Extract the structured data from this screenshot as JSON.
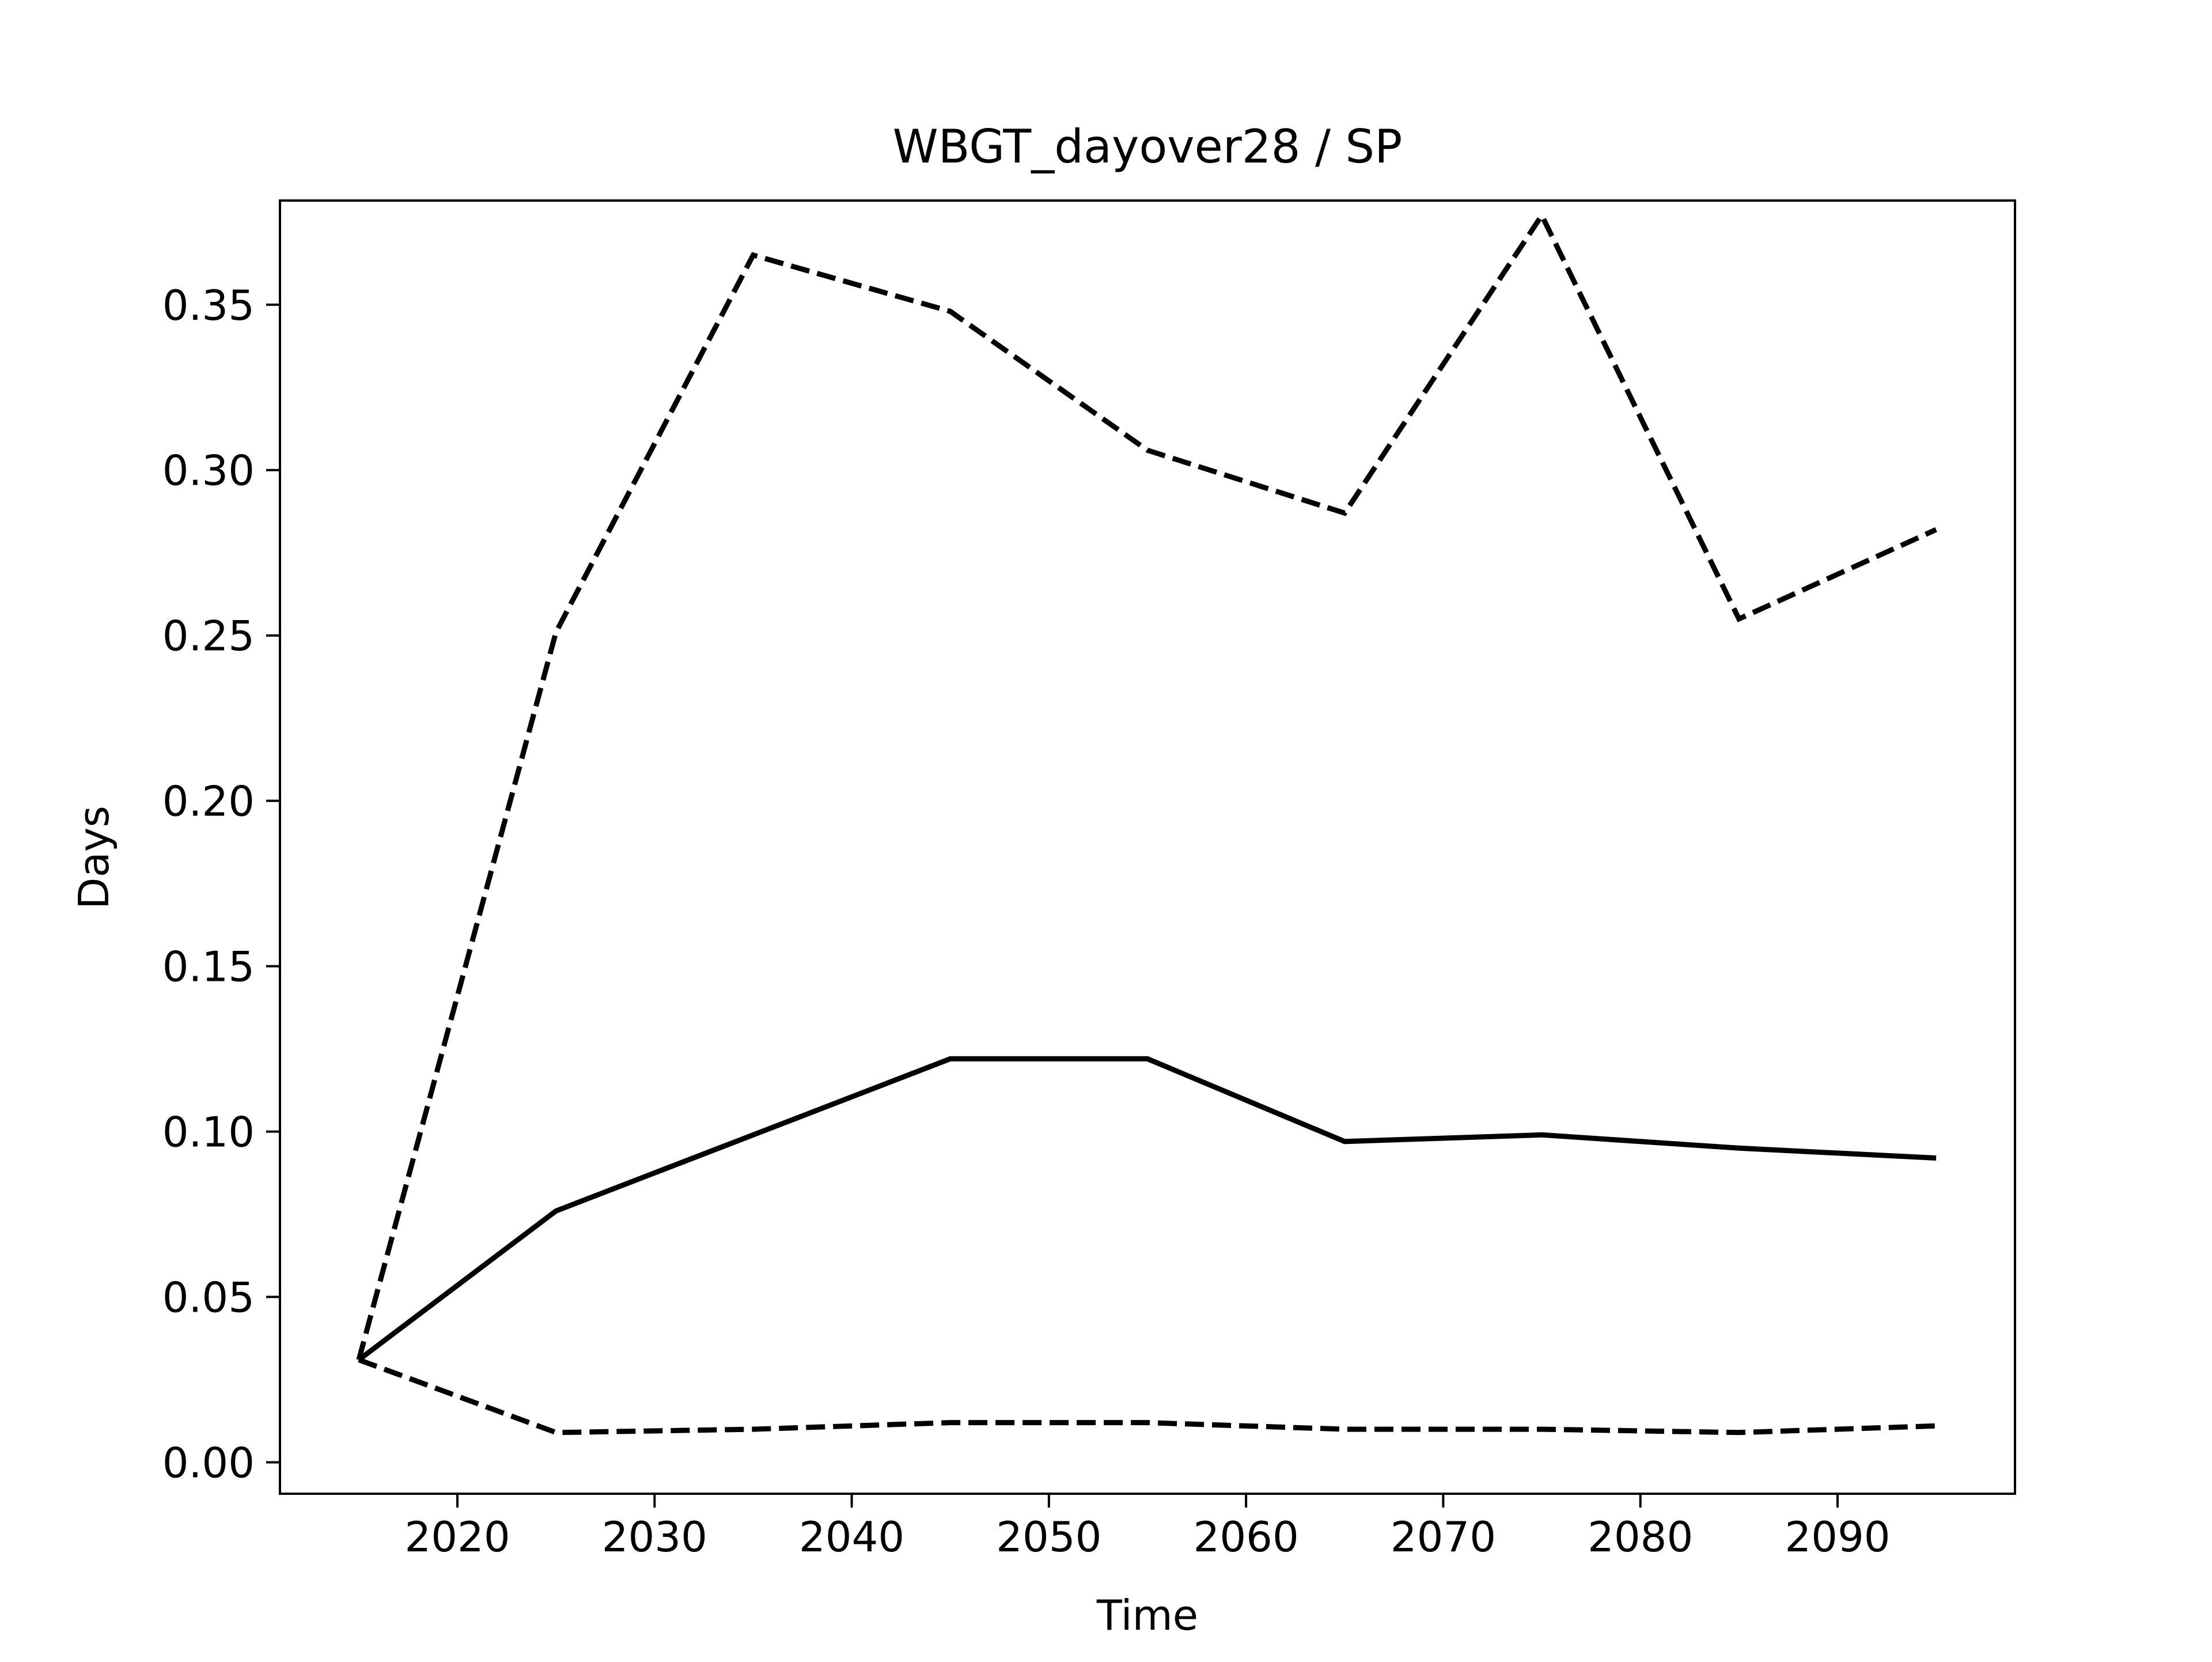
{
  "chart_data": {
    "type": "line",
    "title": "WBGT_dayover28 / SP",
    "xlabel": "Time",
    "ylabel": "Days",
    "x": [
      2015,
      2025,
      2035,
      2045,
      2055,
      2065,
      2075,
      2085,
      2095
    ],
    "xlim": [
      2011,
      2099
    ],
    "ylim": [
      -0.0095,
      0.3815
    ],
    "xticks": [
      2020,
      2030,
      2040,
      2050,
      2060,
      2070,
      2080,
      2090
    ],
    "yticks": [
      0.0,
      0.05,
      0.1,
      0.15,
      0.2,
      0.25,
      0.3,
      0.35
    ],
    "ytick_labels": [
      "0.00",
      "0.05",
      "0.10",
      "0.15",
      "0.20",
      "0.25",
      "0.30",
      "0.35"
    ],
    "grid": false,
    "legend": "none",
    "series": [
      {
        "style": "solid",
        "color": "#000000",
        "values": [
          0.031,
          0.076,
          0.099,
          0.122,
          0.122,
          0.097,
          0.099,
          0.095,
          0.092
        ]
      },
      {
        "style": "dashed",
        "color": "#000000",
        "values": [
          0.031,
          0.251,
          0.365,
          0.348,
          0.306,
          0.287,
          0.377,
          0.255,
          0.282
        ]
      },
      {
        "style": "dashed",
        "color": "#000000",
        "values": [
          0.031,
          0.009,
          0.01,
          0.012,
          0.012,
          0.01,
          0.01,
          0.009,
          0.011
        ]
      }
    ]
  }
}
